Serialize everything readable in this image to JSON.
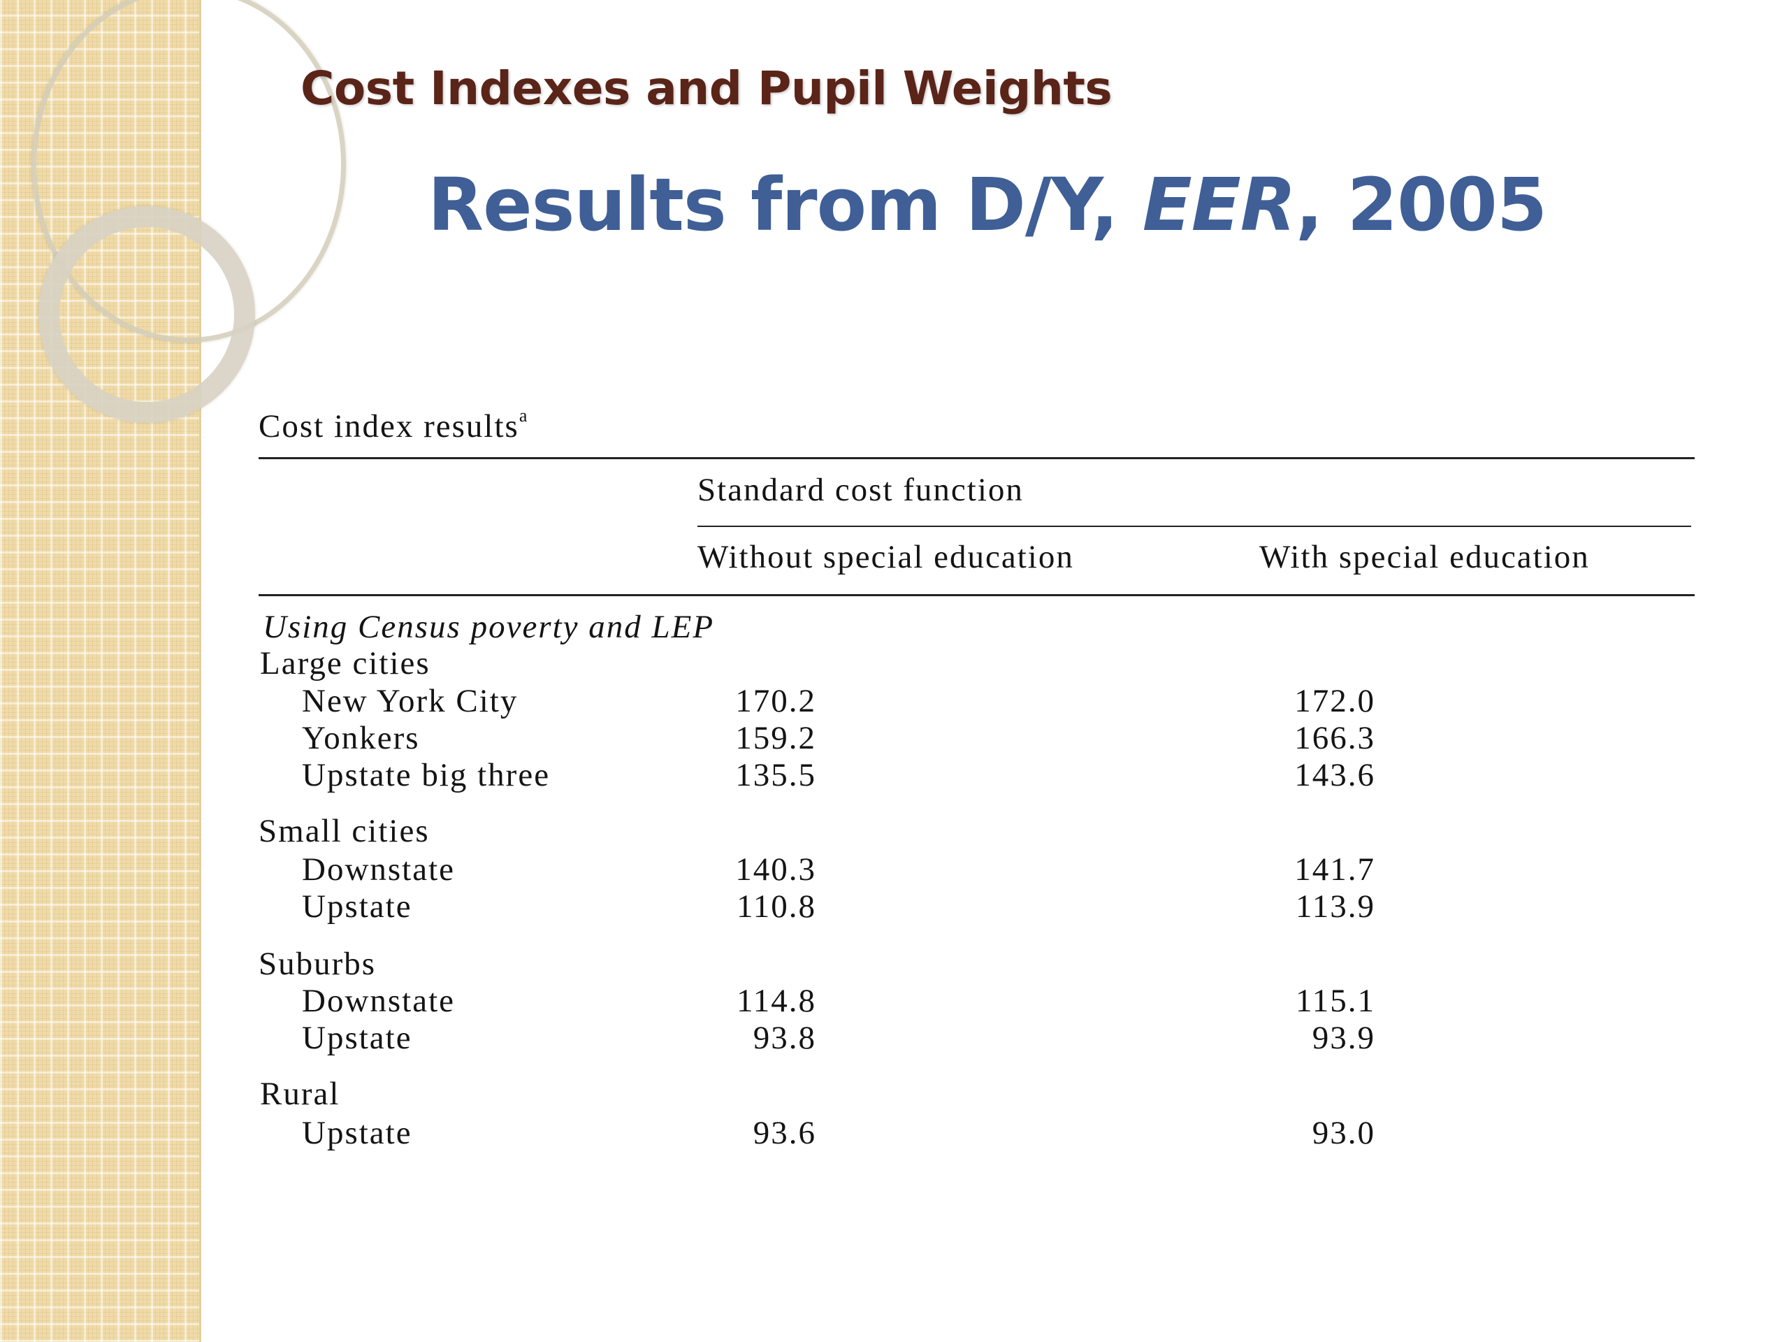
{
  "slide": {
    "heading": "Cost Indexes and Pupil Weights",
    "title_main": "Results from D/Y, ",
    "title_italic": "EER",
    "title_tail": ", 2005"
  },
  "table": {
    "caption": "Cost index results",
    "caption_footnote_mark": "a",
    "group_header": "Standard cost function",
    "col1_header": "Without special education",
    "col2_header": "With special education",
    "section_note": "Using Census poverty and LEP",
    "large_cities": {
      "label": "Large cities",
      "rows": [
        {
          "name": "New York City",
          "without": "170.2",
          "with": "172.0"
        },
        {
          "name": "Yonkers",
          "without": "159.2",
          "with": "166.3"
        },
        {
          "name": "Upstate big three",
          "without": "135.5",
          "with": "143.6"
        }
      ]
    },
    "small_cities": {
      "label": "Small cities",
      "rows": [
        {
          "name": "Downstate",
          "without": "140.3",
          "with": "141.7"
        },
        {
          "name": "Upstate",
          "without": "110.8",
          "with": "113.9"
        }
      ]
    },
    "suburbs": {
      "label": "Suburbs",
      "rows": [
        {
          "name": "Downstate",
          "without": "114.8",
          "with": "115.1"
        },
        {
          "name": "Upstate",
          "without": "93.8",
          "with": "93.9"
        }
      ]
    },
    "rural": {
      "label": "Rural",
      "rows": [
        {
          "name": "Upstate",
          "without": "93.6",
          "with": "93.0"
        }
      ]
    }
  }
}
